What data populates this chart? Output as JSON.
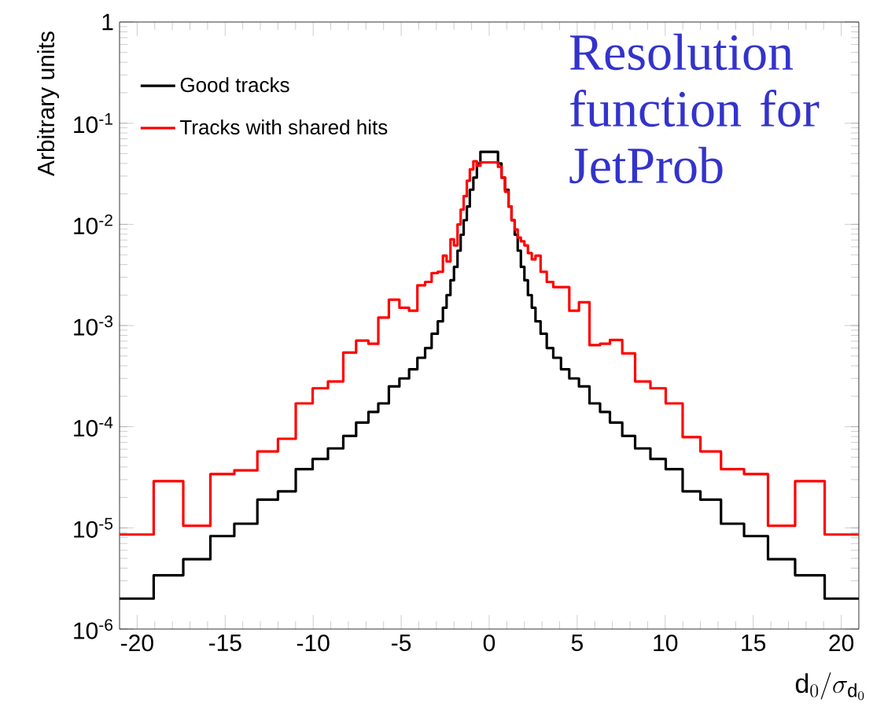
{
  "chart_data": {
    "type": "histogram",
    "annotations": [
      "Resolution function for JetProb"
    ],
    "ylabel": "Arbitrary units",
    "xlabel": "\\mathrm{d}_0/\\sigma_{\\mathrm{d}_0}",
    "bins": [
      -21,
      -19.06,
      -17.38,
      -15.84,
      -14.48,
      -13.17,
      -12.0,
      -10.99,
      -10.03,
      -9.16,
      -8.29,
      -7.56,
      -6.86,
      -6.3,
      -5.7,
      -5.1,
      -4.55,
      -4.08,
      -3.64,
      -3.27,
      -2.92,
      -2.63,
      -2.42,
      -2.2,
      -2.0,
      -1.8,
      -1.62,
      -1.45,
      -1.27,
      -1.1,
      -0.9,
      -0.7,
      -0.5,
      0.5,
      0.7,
      0.9,
      1.1,
      1.27,
      1.45,
      1.62,
      1.8,
      2.0,
      2.2,
      2.42,
      2.63,
      2.92,
      3.27,
      3.64,
      4.08,
      4.55,
      5.1,
      5.7,
      6.3,
      6.86,
      7.56,
      8.29,
      9.16,
      10.03,
      10.99,
      12.0,
      13.17,
      14.48,
      15.84,
      17.38,
      19.06,
      21
    ],
    "series": [
      {
        "name": "Good tracks",
        "color": "#000000",
        "values": [
          2e-06,
          3.4e-06,
          4.9e-06,
          8.3e-06,
          1.1e-05,
          1.9e-05,
          2.3e-05,
          3.8e-05,
          4.8e-05,
          6.1e-05,
          8.1e-05,
          0.00011,
          0.00014,
          0.00017,
          0.00025,
          0.0003,
          0.00037,
          0.00048,
          0.0006,
          0.00083,
          0.0011,
          0.0015,
          0.002,
          0.0028,
          0.0038,
          0.0055,
          0.0079,
          0.011,
          0.015,
          0.022,
          0.029,
          0.04,
          0.052,
          0.04,
          0.029,
          0.022,
          0.015,
          0.011,
          0.0079,
          0.0055,
          0.0038,
          0.0028,
          0.002,
          0.0015,
          0.0011,
          0.00083,
          0.0006,
          0.00048,
          0.00037,
          0.0003,
          0.00025,
          0.00017,
          0.00014,
          0.00011,
          8.1e-05,
          6.1e-05,
          4.8e-05,
          3.8e-05,
          2.3e-05,
          1.9e-05,
          1.1e-05,
          8.3e-06,
          4.9e-06,
          3.4e-06,
          2e-06
        ]
      },
      {
        "name": "Tracks with shared hits",
        "color": "#ff0000",
        "values": [
          8.6e-06,
          2.9e-05,
          1.05e-05,
          3.4e-05,
          3.7e-05,
          5.7e-05,
          7.6e-05,
          0.00017,
          0.00024,
          0.00028,
          0.00054,
          0.00071,
          0.00066,
          0.0012,
          0.0018,
          0.0015,
          0.0014,
          0.0025,
          0.0027,
          0.0033,
          0.0034,
          0.0049,
          0.0043,
          0.0071,
          0.0062,
          0.01,
          0.014,
          0.019,
          0.027,
          0.035,
          0.042,
          0.038,
          0.041,
          0.037,
          0.029,
          0.021,
          0.015,
          0.011,
          0.0089,
          0.0074,
          0.0068,
          0.0062,
          0.0052,
          0.0045,
          0.0049,
          0.0034,
          0.0027,
          0.0024,
          0.0024,
          0.0014,
          0.0017,
          0.00064,
          0.00066,
          0.00072,
          0.00053,
          0.00028,
          0.00024,
          0.00017,
          7.9e-05,
          5.7e-05,
          3.8e-05,
          3.4e-05,
          1.05e-05,
          2.9e-05,
          8.6e-06
        ]
      }
    ],
    "xlim": [
      -21,
      21
    ],
    "xticks": [
      -20,
      -15,
      -10,
      -5,
      0,
      5,
      10,
      15,
      20
    ],
    "ylim": [
      1e-06,
      1
    ],
    "yticks": [
      {
        "value": 1e-06,
        "label": "10$^{-6}$"
      },
      {
        "value": 1e-05,
        "label": "10$^{-5}$"
      },
      {
        "value": 0.0001,
        "label": "10$^{-4}$"
      },
      {
        "value": 0.001,
        "label": "10$^{-3}$"
      },
      {
        "value": 0.01,
        "label": "10$^{-2}$"
      },
      {
        "value": 0.1,
        "label": "10$^{-1}$"
      },
      1
    ],
    "log": "y",
    "legend": "top left"
  }
}
